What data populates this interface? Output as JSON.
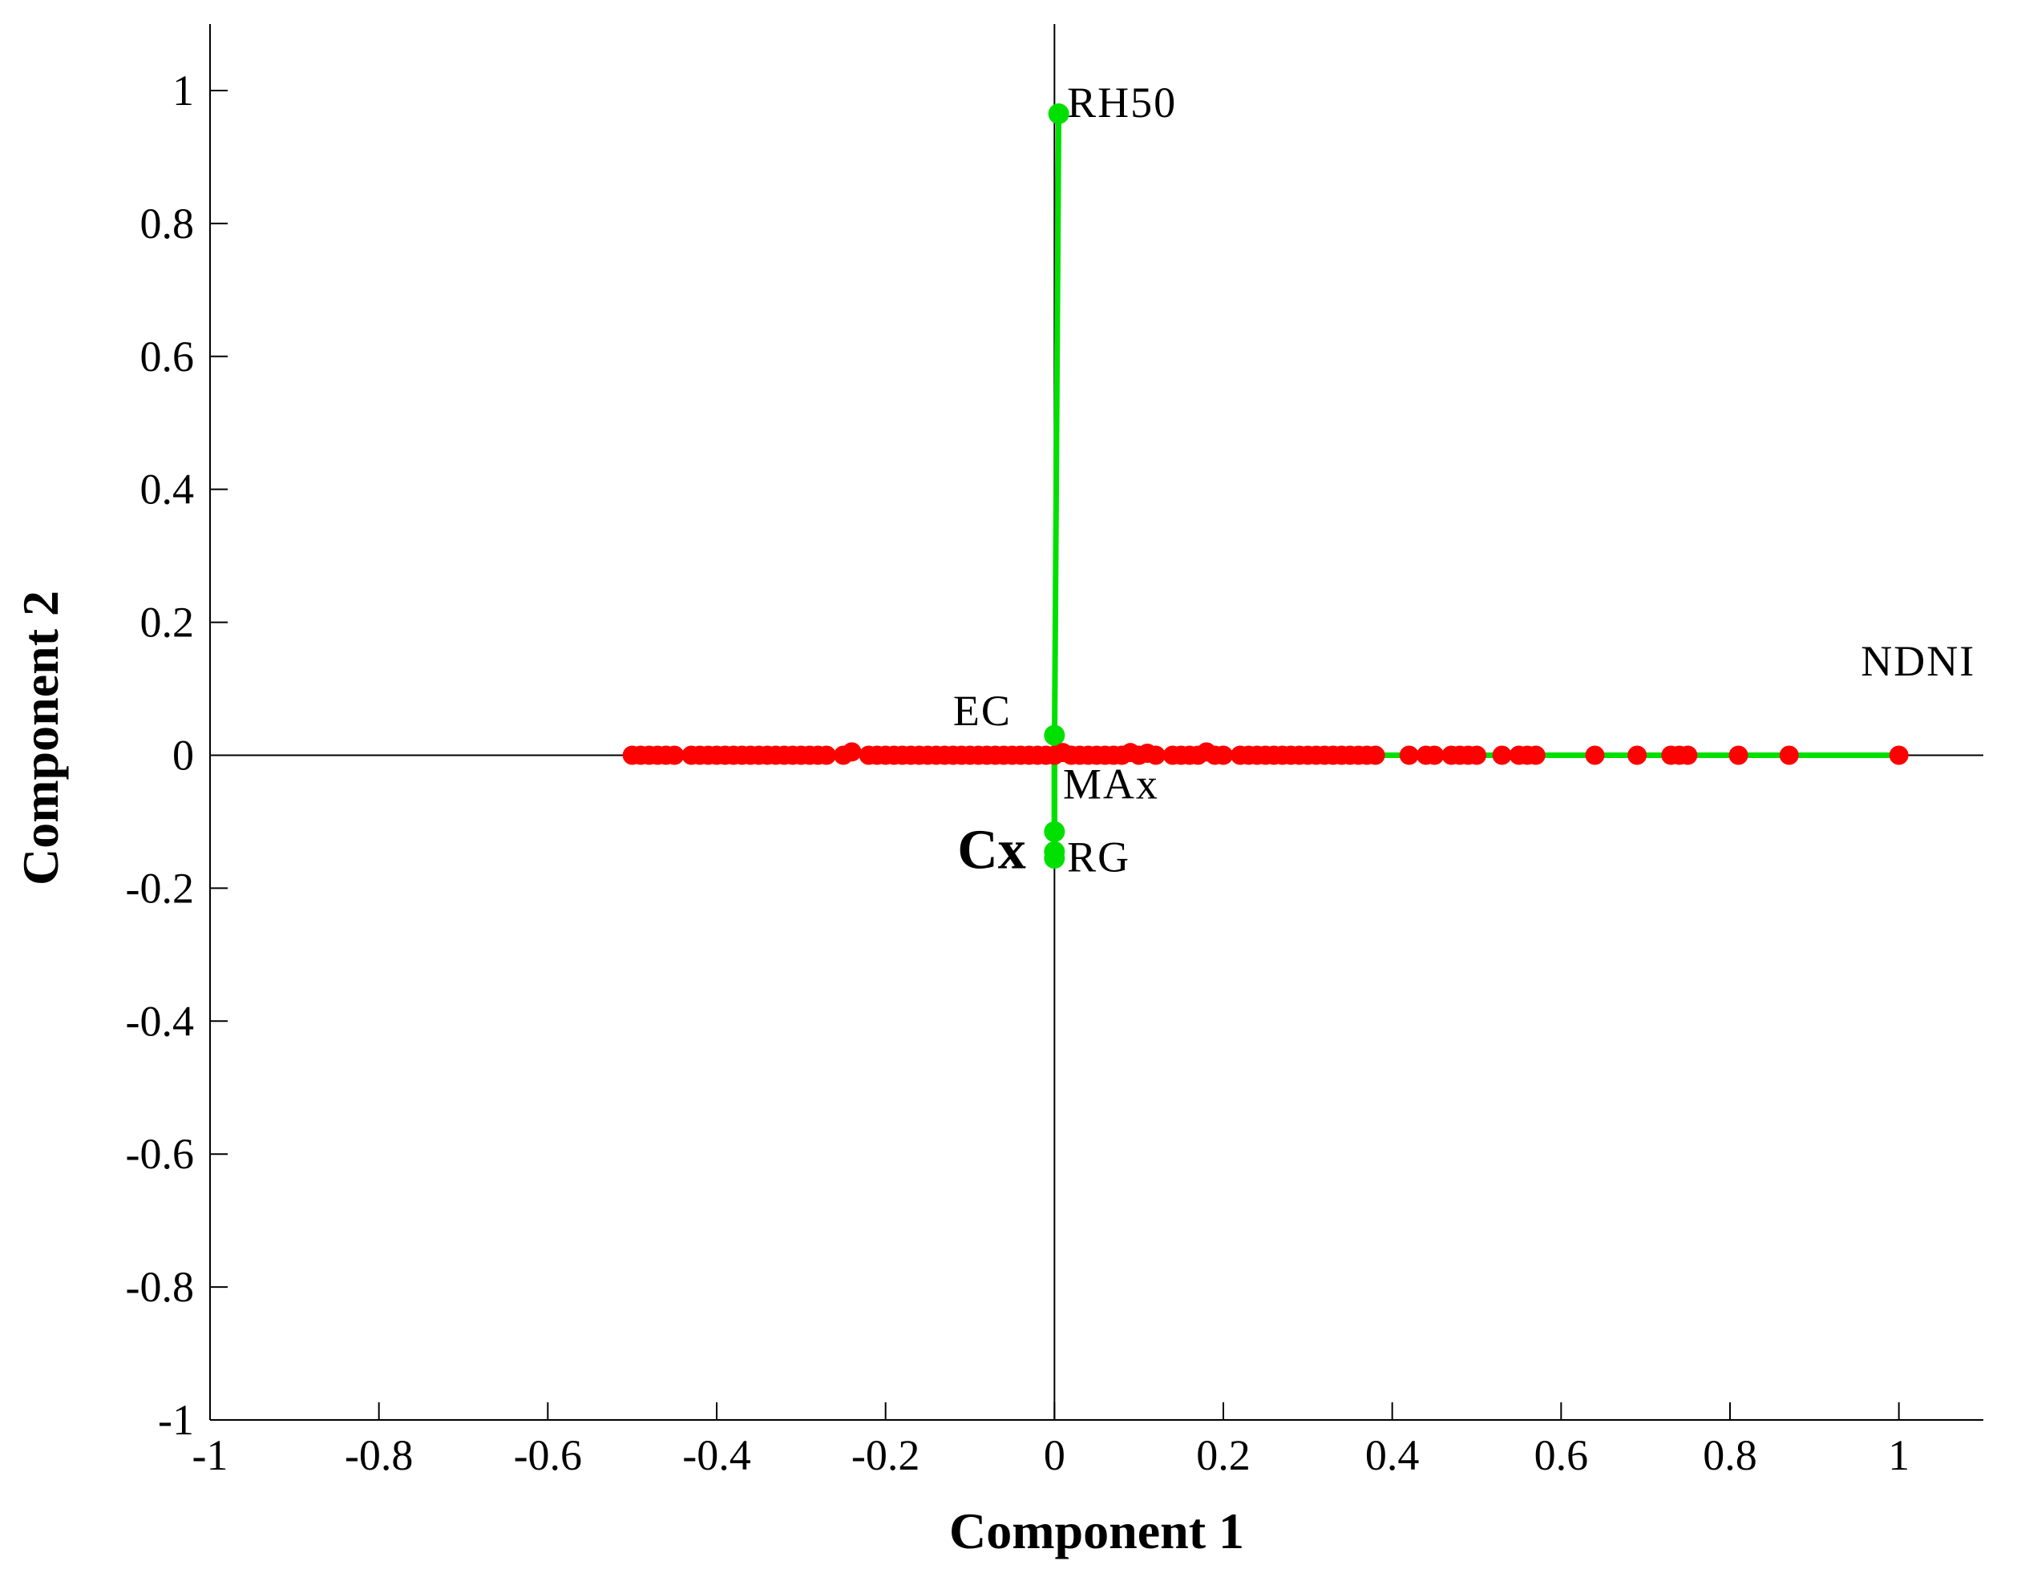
{
  "chart_data": {
    "type": "scatter",
    "title": "",
    "xlabel": "Component 1",
    "ylabel": "Component 2",
    "xlim": [
      -1,
      1.1
    ],
    "ylim": [
      -1,
      1.1
    ],
    "x_ticks": [
      "-1",
      "-0.8",
      "-0.6",
      "-0.4",
      "-0.2",
      "0",
      "0.2",
      "0.4",
      "0.6",
      "0.8",
      "1"
    ],
    "y_ticks": [
      "1",
      "0.8",
      "0.6",
      "0.4",
      "0.2",
      "0",
      "-0.2",
      "-0.4",
      "-0.6",
      "-0.8",
      "-1"
    ],
    "grid": false,
    "zero_lines": true,
    "colors": {
      "vectors": "#00e000",
      "observations": "#ff0000",
      "axes": "#000000"
    },
    "vectors": [
      {
        "name": "RH50",
        "x": 0.005,
        "y": 0.965
      },
      {
        "name": "EC",
        "x": 0.0,
        "y": 0.03
      },
      {
        "name": "MAx",
        "x": 0.0,
        "y": -0.115
      },
      {
        "name": "Cx",
        "x": 0.0,
        "y": -0.145
      },
      {
        "name": "RG",
        "x": 0.0,
        "y": -0.155
      },
      {
        "name": "NDNI",
        "x": 1.0,
        "y": 0.0
      }
    ],
    "vector_labels": [
      {
        "text": "RH50",
        "x": 0.015,
        "y": 0.96
      },
      {
        "text": "EC",
        "x": -0.12,
        "y": 0.045
      },
      {
        "text": "MAx",
        "x": 0.01,
        "y": -0.065
      },
      {
        "text": "Cx",
        "x": -0.115,
        "y": -0.17,
        "big": true
      },
      {
        "text": "RG",
        "x": 0.015,
        "y": -0.175
      },
      {
        "text": "NDNI",
        "x": 0.955,
        "y": 0.12
      }
    ],
    "observations": {
      "x": [
        -0.5,
        -0.49,
        -0.48,
        -0.47,
        -0.46,
        -0.45,
        -0.43,
        -0.42,
        -0.41,
        -0.4,
        -0.39,
        -0.38,
        -0.37,
        -0.36,
        -0.35,
        -0.34,
        -0.33,
        -0.32,
        -0.31,
        -0.3,
        -0.29,
        -0.28,
        -0.27,
        -0.25,
        -0.24,
        -0.22,
        -0.21,
        -0.2,
        -0.19,
        -0.18,
        -0.17,
        -0.16,
        -0.15,
        -0.14,
        -0.13,
        -0.12,
        -0.11,
        -0.1,
        -0.09,
        -0.08,
        -0.07,
        -0.06,
        -0.05,
        -0.04,
        -0.03,
        -0.02,
        -0.01,
        0.0,
        0.01,
        0.02,
        0.03,
        0.04,
        0.05,
        0.06,
        0.07,
        0.08,
        0.09,
        0.1,
        0.11,
        0.12,
        0.14,
        0.15,
        0.16,
        0.17,
        0.18,
        0.19,
        0.2,
        0.22,
        0.23,
        0.24,
        0.25,
        0.26,
        0.27,
        0.28,
        0.29,
        0.3,
        0.31,
        0.32,
        0.33,
        0.34,
        0.35,
        0.36,
        0.37,
        0.38,
        0.42,
        0.44,
        0.45,
        0.47,
        0.48,
        0.49,
        0.5,
        0.53,
        0.55,
        0.56,
        0.57,
        0.64,
        0.69,
        0.73,
        0.74,
        0.75,
        0.81,
        0.87,
        1.0
      ],
      "y": [
        0,
        0,
        0,
        0,
        0,
        0,
        0,
        0,
        0,
        0,
        0,
        0,
        0,
        0,
        0,
        0,
        0,
        0,
        0,
        0,
        0,
        0,
        0,
        0,
        0.005,
        0,
        0,
        0,
        0,
        0,
        0,
        0,
        0,
        0,
        0,
        0,
        0,
        0,
        0,
        0,
        0,
        0,
        0,
        0,
        0,
        0,
        0,
        0,
        0.004,
        0,
        0,
        0,
        0,
        0,
        0,
        0,
        0.004,
        0,
        0.003,
        0,
        0,
        0,
        0,
        0,
        0.005,
        0,
        0,
        0,
        0,
        0,
        0,
        0,
        0,
        0,
        0,
        0,
        0,
        0,
        0,
        0,
        0,
        0,
        0,
        0,
        0,
        0,
        0,
        0,
        0,
        0,
        0,
        0,
        0,
        0,
        0,
        0,
        0,
        0,
        0,
        0,
        0,
        0,
        0
      ]
    }
  }
}
